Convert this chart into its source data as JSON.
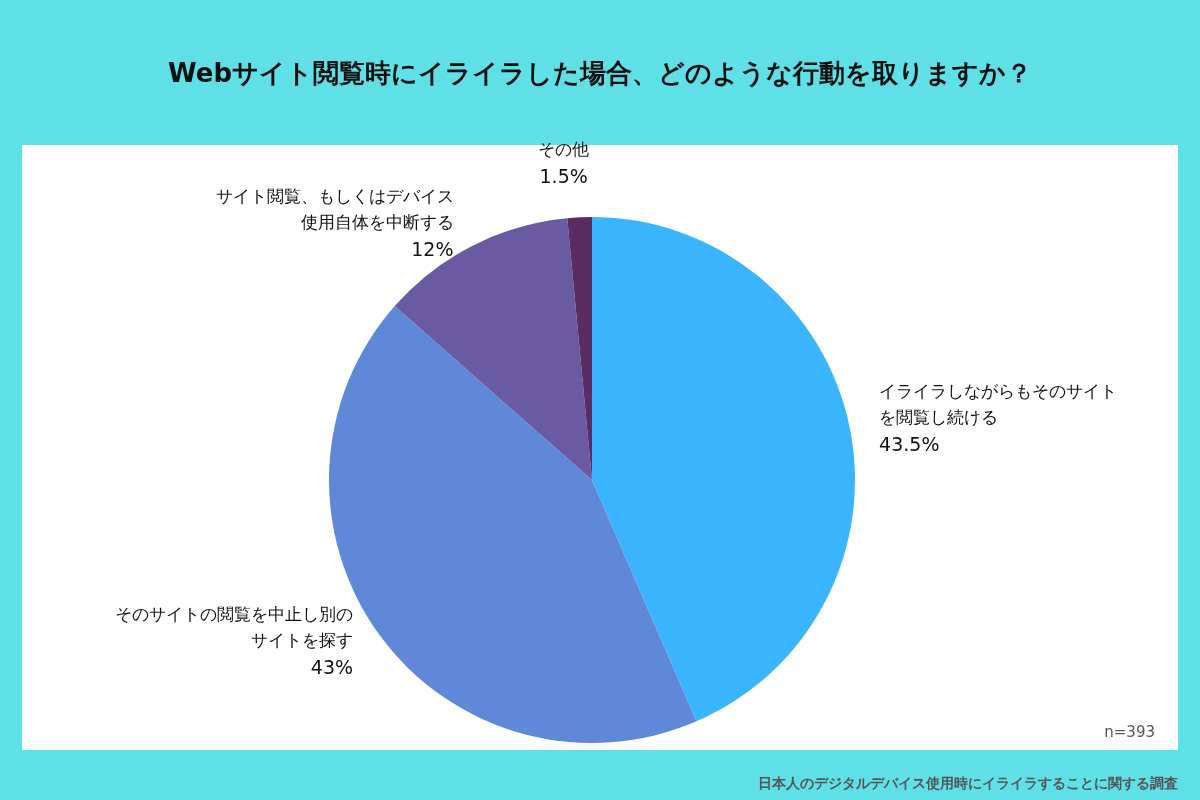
{
  "chart_data": {
    "type": "pie",
    "title": "Webサイト閲覧時にイライラした場合、どのような行動を取りますか？",
    "categories": [
      "イライラしながらもそのサイトを閲覧し続ける",
      "そのサイトの閲覧を中止し別のサイトを探す",
      "サイト閲覧、もしくはデバイス使用自体を中断する",
      "その他"
    ],
    "values": [
      43.5,
      43,
      12,
      1.5
    ],
    "colors": [
      "#3bb4fe",
      "#5f88d8",
      "#685ba1",
      "#5b2c62"
    ],
    "value_labels": [
      "43.5%",
      "43%",
      "12%",
      "1.5%"
    ],
    "annotations": [
      "n=393",
      "日本人のデジタルデバイス使用時にイライラすることに関する調査"
    ]
  }
}
